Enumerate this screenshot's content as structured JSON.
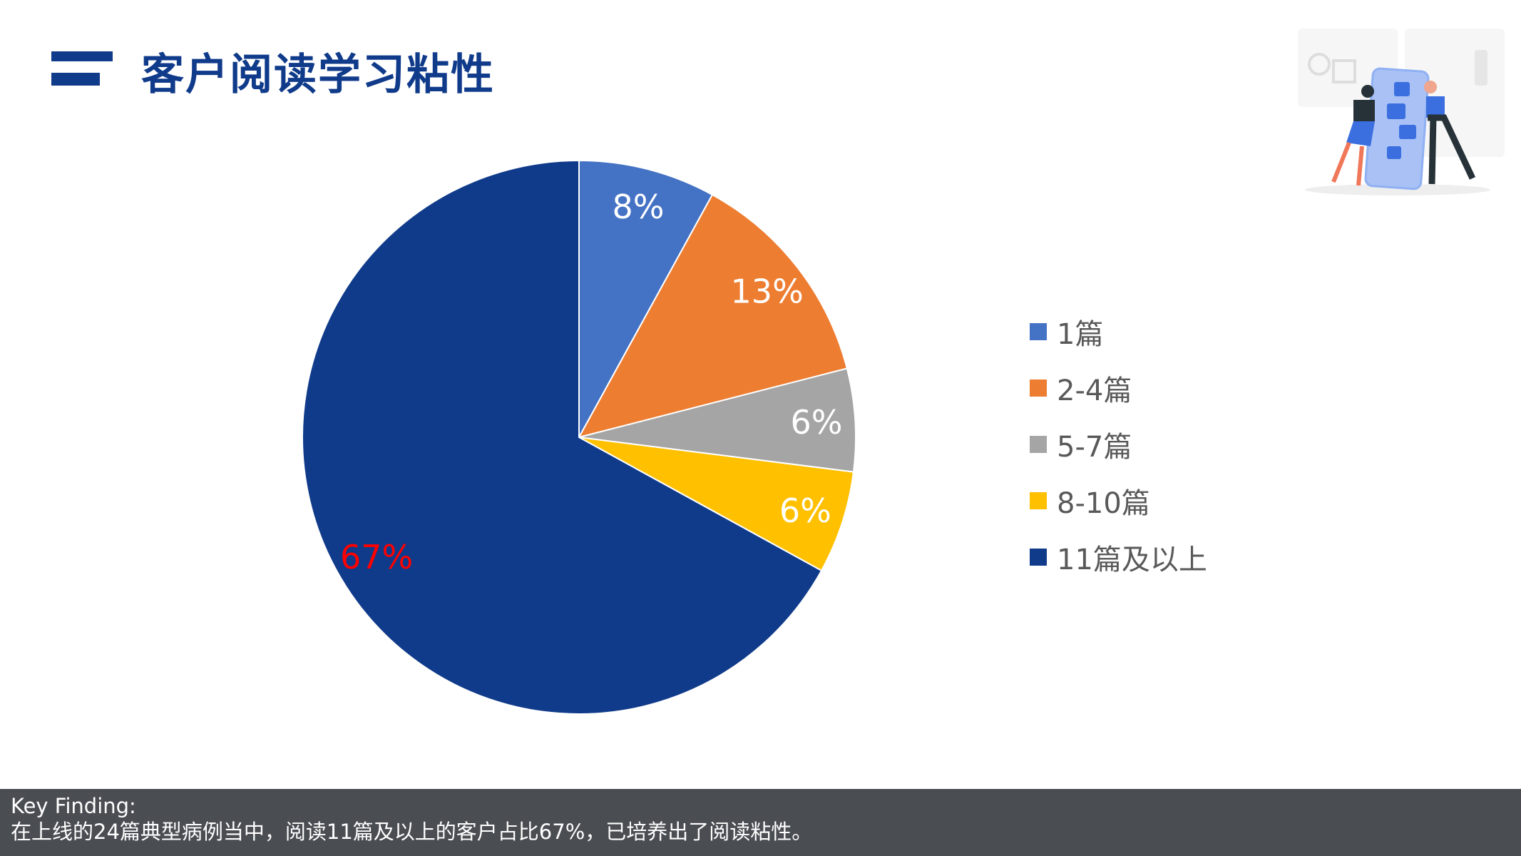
{
  "header": {
    "title": "客户阅读学习粘性"
  },
  "chart_data": {
    "type": "pie",
    "title": "客户阅读学习粘性",
    "categories": [
      "1篇",
      "2-4篇",
      "5-7篇",
      "8-10篇",
      "11篇及以上"
    ],
    "values": [
      8,
      13,
      6,
      6,
      67
    ],
    "labels": [
      "8%",
      "13%",
      "6%",
      "6%",
      "67%"
    ],
    "colors": [
      "#4472c4",
      "#ed7d31",
      "#a5a5a5",
      "#ffc000",
      "#103b8a"
    ],
    "label_colors": [
      "#ffffff",
      "#ffffff",
      "#ffffff",
      "#ffffff",
      "#ff0000"
    ],
    "start_angle": "top, clockwise",
    "legend": "right"
  },
  "footer": {
    "heading": "Key Finding:",
    "text": "在上线的24篇典型病例当中，阅读11篇及以上的客户占比67%，已培养出了阅读粘性。"
  }
}
